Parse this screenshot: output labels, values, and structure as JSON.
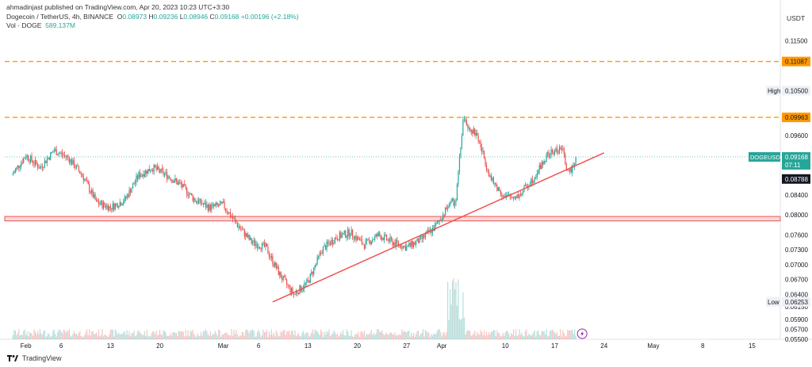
{
  "publisher_line": "ahmadinjast published on TradingView.com, Apr 20, 2023 10:23 UTC+3:30",
  "symbol_line": {
    "name": "Dogecoin / TetherUS, 4h, BINANCE",
    "o_label": "O",
    "o": "0.08973",
    "h_label": "H",
    "h": "0.09236",
    "l_label": "L",
    "l": "0.08946",
    "c_label": "C",
    "c": "0.09168",
    "change": "+0.00196 (+2.18%)"
  },
  "volume_line": {
    "label": "Vol · DOGE",
    "value": "589.137M"
  },
  "currency": "USDT",
  "footer": {
    "brand": "TradingView"
  },
  "colors": {
    "up": "#26a69a",
    "down": "#ef5350",
    "dashed": "#ff9800",
    "zone_fill": "#f8d7d7",
    "zone_stroke": "#ef5350",
    "trendline": "#ef5350",
    "price_line": "#26a69a"
  },
  "chart_data": {
    "type": "candlestick",
    "title": "Dogecoin / TetherUS, 4h, BINANCE",
    "y_axis_ticks": [
      "0.11500",
      "0.10500",
      "0.09600",
      "0.08400",
      "0.08000",
      "0.07600",
      "0.07300",
      "0.07000",
      "0.06700",
      "0.06400",
      "0.06150",
      "0.05900",
      "0.05700",
      "0.05500"
    ],
    "x_axis_ticks": [
      "Feb",
      "6",
      "13",
      "20",
      "Mar",
      "6",
      "13",
      "20",
      "27",
      "Apr",
      "10",
      "17",
      "24",
      "May",
      "8",
      "15"
    ],
    "horizontal_levels": [
      {
        "label": "0.11087",
        "price": 0.11087,
        "style": "dashed"
      },
      {
        "label": "0.09963",
        "price": 0.09963,
        "style": "dashed"
      }
    ],
    "support_zone": {
      "low": 0.0788,
      "high": 0.0797
    },
    "trendline": {
      "from": {
        "date": "2023-03-08",
        "price": 0.0625
      },
      "to": {
        "date": "2023-04-24",
        "price": 0.0925
      }
    },
    "markers": {
      "high": {
        "label": "High",
        "value": "0.10500"
      },
      "low": {
        "label": "Low",
        "value": "0.06253"
      },
      "current": {
        "label": "DOGEUSDT",
        "value": "0.09168",
        "countdown": "07:11"
      },
      "extra": {
        "value": "0.08788"
      }
    },
    "close_path": [
      [
        "2023-01-30",
        0.088
      ],
      [
        "2023-02-01",
        0.092
      ],
      [
        "2023-02-03",
        0.0895
      ],
      [
        "2023-02-05",
        0.093
      ],
      [
        "2023-02-07",
        0.0915
      ],
      [
        "2023-02-09",
        0.088
      ],
      [
        "2023-02-11",
        0.0825
      ],
      [
        "2023-02-13",
        0.0815
      ],
      [
        "2023-02-15",
        0.083
      ],
      [
        "2023-02-17",
        0.088
      ],
      [
        "2023-02-19",
        0.0895
      ],
      [
        "2023-02-21",
        0.088
      ],
      [
        "2023-02-23",
        0.086
      ],
      [
        "2023-02-25",
        0.083
      ],
      [
        "2023-02-27",
        0.0815
      ],
      [
        "2023-03-01",
        0.082
      ],
      [
        "2023-03-03",
        0.078
      ],
      [
        "2023-03-05",
        0.0745
      ],
      [
        "2023-03-07",
        0.0735
      ],
      [
        "2023-03-09",
        0.068
      ],
      [
        "2023-03-11",
        0.064
      ],
      [
        "2023-03-13",
        0.0665
      ],
      [
        "2023-03-15",
        0.073
      ],
      [
        "2023-03-17",
        0.0755
      ],
      [
        "2023-03-19",
        0.0765
      ],
      [
        "2023-03-21",
        0.074
      ],
      [
        "2023-03-23",
        0.076
      ],
      [
        "2023-03-25",
        0.0745
      ],
      [
        "2023-03-27",
        0.0735
      ],
      [
        "2023-03-29",
        0.075
      ],
      [
        "2023-03-31",
        0.0775
      ],
      [
        "2023-04-02",
        0.082
      ],
      [
        "2023-04-03",
        0.083
      ],
      [
        "2023-04-04",
        0.099
      ],
      [
        "2023-04-06",
        0.096
      ],
      [
        "2023-04-08",
        0.087
      ],
      [
        "2023-04-10",
        0.0835
      ],
      [
        "2023-04-12",
        0.084
      ],
      [
        "2023-04-14",
        0.0875
      ],
      [
        "2023-04-16",
        0.092
      ],
      [
        "2023-04-18",
        0.0935
      ],
      [
        "2023-04-19",
        0.088
      ],
      [
        "2023-04-20",
        0.0917
      ]
    ],
    "ylim": [
      0.055,
      0.1175
    ],
    "xlim": [
      "2023-01-29",
      "2023-05-19"
    ],
    "grid": true
  }
}
